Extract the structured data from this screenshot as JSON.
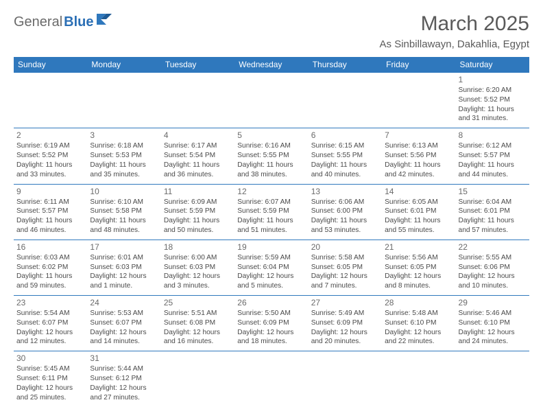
{
  "logo": {
    "text1": "General",
    "text2": "Blue"
  },
  "title": {
    "month": "March 2025",
    "location": "As Sinbillawayn, Dakahlia, Egypt"
  },
  "colors": {
    "headerBg": "#2f78bd",
    "headerText": "#ffffff",
    "border": "#2f78bd",
    "bodyText": "#4a4a4a",
    "titleText": "#5a5a5a"
  },
  "dayHeaders": [
    "Sunday",
    "Monday",
    "Tuesday",
    "Wednesday",
    "Thursday",
    "Friday",
    "Saturday"
  ],
  "weeks": [
    [
      null,
      null,
      null,
      null,
      null,
      null,
      {
        "n": "1",
        "sr": "6:20 AM",
        "ss": "5:52 PM",
        "dl": "11 hours and 31 minutes."
      }
    ],
    [
      {
        "n": "2",
        "sr": "6:19 AM",
        "ss": "5:52 PM",
        "dl": "11 hours and 33 minutes."
      },
      {
        "n": "3",
        "sr": "6:18 AM",
        "ss": "5:53 PM",
        "dl": "11 hours and 35 minutes."
      },
      {
        "n": "4",
        "sr": "6:17 AM",
        "ss": "5:54 PM",
        "dl": "11 hours and 36 minutes."
      },
      {
        "n": "5",
        "sr": "6:16 AM",
        "ss": "5:55 PM",
        "dl": "11 hours and 38 minutes."
      },
      {
        "n": "6",
        "sr": "6:15 AM",
        "ss": "5:55 PM",
        "dl": "11 hours and 40 minutes."
      },
      {
        "n": "7",
        "sr": "6:13 AM",
        "ss": "5:56 PM",
        "dl": "11 hours and 42 minutes."
      },
      {
        "n": "8",
        "sr": "6:12 AM",
        "ss": "5:57 PM",
        "dl": "11 hours and 44 minutes."
      }
    ],
    [
      {
        "n": "9",
        "sr": "6:11 AM",
        "ss": "5:57 PM",
        "dl": "11 hours and 46 minutes."
      },
      {
        "n": "10",
        "sr": "6:10 AM",
        "ss": "5:58 PM",
        "dl": "11 hours and 48 minutes."
      },
      {
        "n": "11",
        "sr": "6:09 AM",
        "ss": "5:59 PM",
        "dl": "11 hours and 50 minutes."
      },
      {
        "n": "12",
        "sr": "6:07 AM",
        "ss": "5:59 PM",
        "dl": "11 hours and 51 minutes."
      },
      {
        "n": "13",
        "sr": "6:06 AM",
        "ss": "6:00 PM",
        "dl": "11 hours and 53 minutes."
      },
      {
        "n": "14",
        "sr": "6:05 AM",
        "ss": "6:01 PM",
        "dl": "11 hours and 55 minutes."
      },
      {
        "n": "15",
        "sr": "6:04 AM",
        "ss": "6:01 PM",
        "dl": "11 hours and 57 minutes."
      }
    ],
    [
      {
        "n": "16",
        "sr": "6:03 AM",
        "ss": "6:02 PM",
        "dl": "11 hours and 59 minutes."
      },
      {
        "n": "17",
        "sr": "6:01 AM",
        "ss": "6:03 PM",
        "dl": "12 hours and 1 minute."
      },
      {
        "n": "18",
        "sr": "6:00 AM",
        "ss": "6:03 PM",
        "dl": "12 hours and 3 minutes."
      },
      {
        "n": "19",
        "sr": "5:59 AM",
        "ss": "6:04 PM",
        "dl": "12 hours and 5 minutes."
      },
      {
        "n": "20",
        "sr": "5:58 AM",
        "ss": "6:05 PM",
        "dl": "12 hours and 7 minutes."
      },
      {
        "n": "21",
        "sr": "5:56 AM",
        "ss": "6:05 PM",
        "dl": "12 hours and 8 minutes."
      },
      {
        "n": "22",
        "sr": "5:55 AM",
        "ss": "6:06 PM",
        "dl": "12 hours and 10 minutes."
      }
    ],
    [
      {
        "n": "23",
        "sr": "5:54 AM",
        "ss": "6:07 PM",
        "dl": "12 hours and 12 minutes."
      },
      {
        "n": "24",
        "sr": "5:53 AM",
        "ss": "6:07 PM",
        "dl": "12 hours and 14 minutes."
      },
      {
        "n": "25",
        "sr": "5:51 AM",
        "ss": "6:08 PM",
        "dl": "12 hours and 16 minutes."
      },
      {
        "n": "26",
        "sr": "5:50 AM",
        "ss": "6:09 PM",
        "dl": "12 hours and 18 minutes."
      },
      {
        "n": "27",
        "sr": "5:49 AM",
        "ss": "6:09 PM",
        "dl": "12 hours and 20 minutes."
      },
      {
        "n": "28",
        "sr": "5:48 AM",
        "ss": "6:10 PM",
        "dl": "12 hours and 22 minutes."
      },
      {
        "n": "29",
        "sr": "5:46 AM",
        "ss": "6:10 PM",
        "dl": "12 hours and 24 minutes."
      }
    ],
    [
      {
        "n": "30",
        "sr": "5:45 AM",
        "ss": "6:11 PM",
        "dl": "12 hours and 25 minutes."
      },
      {
        "n": "31",
        "sr": "5:44 AM",
        "ss": "6:12 PM",
        "dl": "12 hours and 27 minutes."
      },
      null,
      null,
      null,
      null,
      null
    ]
  ],
  "labels": {
    "sunrise": "Sunrise: ",
    "sunset": "Sunset: ",
    "daylight": "Daylight: "
  }
}
